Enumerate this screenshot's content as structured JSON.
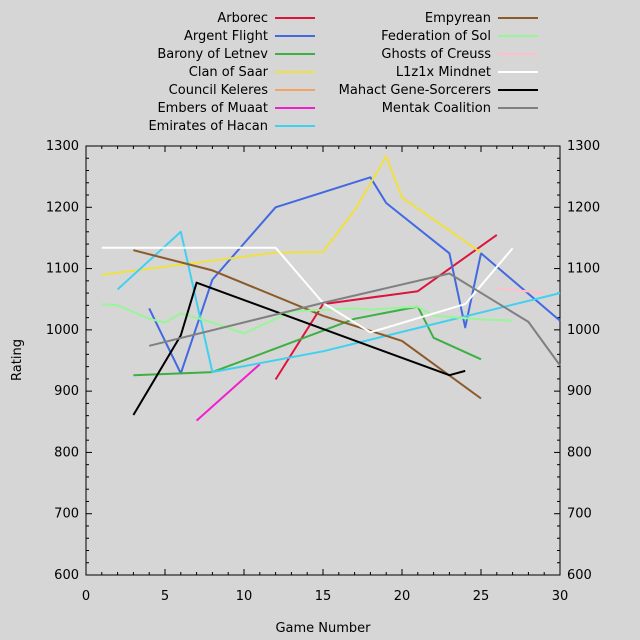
{
  "chart_data": {
    "type": "line",
    "title": "",
    "xlabel": "Game Number",
    "ylabel": "Rating",
    "xlim": [
      0,
      30
    ],
    "ylim": [
      600,
      1300
    ],
    "xticks": [
      0,
      5,
      10,
      15,
      20,
      25,
      30
    ],
    "yticks": [
      600,
      700,
      800,
      900,
      1000,
      1100,
      1200,
      1300
    ],
    "grid": false,
    "legend": "top, two columns",
    "series": [
      {
        "name": "Arborec",
        "color": "#dc143c",
        "x": [
          12,
          15,
          21,
          26
        ],
        "y": [
          919,
          1042,
          1063,
          1155
        ]
      },
      {
        "name": "Argent Flight",
        "color": "#4169e1",
        "x": [
          4,
          6,
          8,
          12,
          18,
          19,
          23,
          24,
          25,
          30
        ],
        "y": [
          1035,
          929,
          1082,
          1200,
          1249,
          1207,
          1125,
          1004,
          1125,
          1015
        ]
      },
      {
        "name": "Barony of Letnev",
        "color": "#3cb043",
        "x": [
          3,
          8,
          17,
          21,
          22,
          25
        ],
        "y": [
          926,
          931,
          1018,
          1038,
          987,
          952
        ]
      },
      {
        "name": "Clan of Saar",
        "color": "#f0e040",
        "x": [
          1,
          12,
          15,
          17,
          19,
          20,
          25
        ],
        "y": [
          1090,
          1126,
          1127,
          1195,
          1283,
          1216,
          1126
        ]
      },
      {
        "name": "Council Keleres",
        "color": "#f4a460",
        "x": [],
        "y": []
      },
      {
        "name": "Embers of Muaat",
        "color": "#f020d0",
        "x": [
          7,
          11
        ],
        "y": [
          852,
          944
        ]
      },
      {
        "name": "Emirates of Hacan",
        "color": "#40d0f0",
        "x": [
          2,
          6,
          8,
          15,
          30
        ],
        "y": [
          1066,
          1160,
          931,
          965,
          1060
        ]
      },
      {
        "name": "Empyrean",
        "color": "#8b5a2b",
        "x": [
          3,
          8,
          15,
          20,
          25
        ],
        "y": [
          1130,
          1097,
          1023,
          982,
          888
        ]
      },
      {
        "name": "Federation of Sol",
        "color": "#98f598",
        "x": [
          1,
          2,
          4,
          5,
          6,
          8,
          10,
          13,
          17,
          18,
          21,
          22,
          25,
          27
        ],
        "y": [
          1042,
          1040,
          1018,
          1012,
          1027,
          1012,
          994,
          1030,
          1035,
          1033,
          1038,
          1023,
          1017,
          1015
        ]
      },
      {
        "name": "Ghosts of Creuss",
        "color": "#ffc0cb",
        "x": [
          26,
          29
        ],
        "y": [
          1068,
          1060
        ]
      },
      {
        "name": "L1z1x Mindnet",
        "color": "#ffffff",
        "x": [
          1,
          12,
          15,
          18,
          24,
          27
        ],
        "y": [
          1134,
          1134,
          1044,
          996,
          1042,
          1133
        ]
      },
      {
        "name": "Mahact Gene-Sorcerers",
        "color": "#000000",
        "x": [
          3,
          6,
          7,
          23,
          24
        ],
        "y": [
          861,
          991,
          1077,
          926,
          933
        ]
      },
      {
        "name": "Mentak Coalition",
        "color": "#808080",
        "x": [
          4,
          15,
          23,
          28,
          30
        ],
        "y": [
          974,
          1044,
          1092,
          1013,
          942
        ]
      }
    ]
  }
}
